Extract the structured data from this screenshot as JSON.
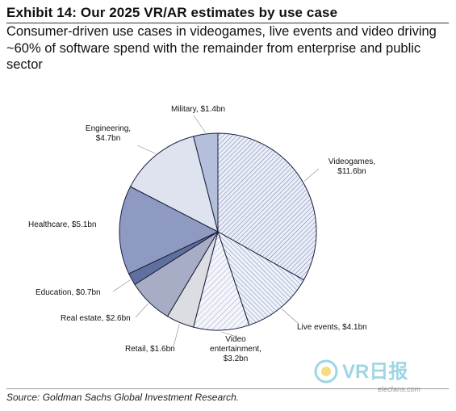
{
  "header": {
    "title": "Exhibit 14: Our 2025 VR/AR estimates by use case",
    "subtitle": "Consumer-driven use cases in videogames, live events and video driving ~60% of software spend with the remainder from enterprise and public sector"
  },
  "source": "Source: Goldman Sachs Global Investment Research.",
  "watermark": {
    "brand_text": "VR日报",
    "site_text": "elecfans.com"
  },
  "chart_data": {
    "type": "pie",
    "title": "",
    "unit": "$bn",
    "slices": [
      {
        "label": "Videogames,",
        "label2": "$11.6bn",
        "value": 11.6,
        "fill": "#e9eef8",
        "pattern": "hatch-fwd"
      },
      {
        "label": "Live events, $4.1bn",
        "label2": "",
        "value": 4.1,
        "fill": "#eef2fa",
        "pattern": "hatch-back"
      },
      {
        "label": "Video",
        "label2": "entertainment,",
        "label3": "$3.2bn",
        "value": 3.2,
        "fill": "#f2f5fb",
        "pattern": "hatch-fwd-light"
      },
      {
        "label": "Retail, $1.6bn",
        "label2": "",
        "value": 1.6,
        "fill": "#dcdde2",
        "pattern": "none"
      },
      {
        "label": "Real estate, $2.6bn",
        "label2": "",
        "value": 2.6,
        "fill": "#a7adc4",
        "pattern": "none"
      },
      {
        "label": "Education, $0.7bn",
        "label2": "",
        "value": 0.7,
        "fill": "#5f6f9e",
        "pattern": "none"
      },
      {
        "label": "Healthcare, $5.1bn",
        "label2": "",
        "value": 5.1,
        "fill": "#8e9ac1",
        "pattern": "none"
      },
      {
        "label": "Engineering,",
        "label2": "$4.7bn",
        "value": 4.7,
        "fill": "#dfe3ef",
        "pattern": "none"
      },
      {
        "label": "Military, $1.4bn",
        "label2": "",
        "value": 1.4,
        "fill": "#b4bfdb",
        "pattern": "none"
      }
    ],
    "legend": "none",
    "colors": {
      "stroke": "#1a1f3a",
      "hatch": "#6f7ba8"
    }
  }
}
